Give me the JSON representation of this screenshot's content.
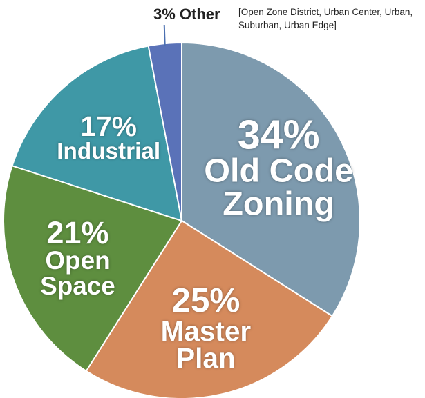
{
  "chart_data": {
    "type": "pie",
    "categories": [
      "Old Code Zoning",
      "Master Plan",
      "Open Space",
      "Industrial",
      "Other"
    ],
    "values": [
      34,
      25,
      21,
      17,
      3
    ],
    "value_labels": [
      "34%",
      "25%",
      "21%",
      "17%",
      "3%"
    ],
    "colors": [
      "#7d9aae",
      "#d58a5c",
      "#5e8e3f",
      "#3f98a6",
      "#5a72b8"
    ],
    "annotation": "[Open Zone District, Urban Center, Urban, Suburban, Urban Edge]"
  }
}
